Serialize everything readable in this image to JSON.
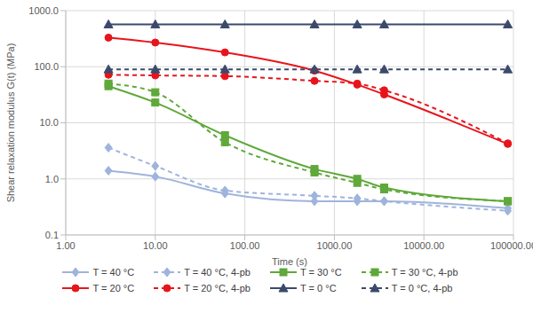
{
  "chart_data": {
    "type": "line",
    "log": true,
    "grid": true,
    "x_label": "Time (s)",
    "y_label": "Shear relaxation modulus G(t) (MPa)",
    "xlim": [
      1,
      100000
    ],
    "xticks": [
      {
        "value": 1,
        "label": "1.00"
      },
      {
        "value": 10,
        "label": "10.00"
      },
      {
        "value": 100,
        "label": "100.00"
      },
      {
        "value": 1000,
        "label": "1000.00"
      },
      {
        "value": 10000,
        "label": "10000.00"
      },
      {
        "value": 100000,
        "label": "100000.00"
      }
    ],
    "ylim": [
      0.1,
      1000
    ],
    "yticks": [
      0.1,
      {
        "value": 1,
        "label": "1.0"
      },
      {
        "value": 10,
        "label": "10.0"
      },
      {
        "value": 100,
        "label": "100.0"
      },
      {
        "value": 1000,
        "label": "1000.0"
      }
    ],
    "x": [
      3,
      10,
      60,
      600,
      1800,
      3600,
      86400
    ],
    "series": [
      {
        "name": "T = 40 °C",
        "color": "#9fb4dc",
        "marker": "diamond",
        "line_style": "solid",
        "values": [
          1.4,
          1.1,
          0.55,
          0.4,
          0.4,
          0.4,
          0.3
        ]
      },
      {
        "name": "T = 40 °C, 4-pb",
        "color": "#9fb4dc",
        "marker": "diamond",
        "line_style": "dashed",
        "values": [
          3.6,
          1.7,
          0.62,
          0.5,
          0.45,
          0.4,
          0.27
        ]
      },
      {
        "name": "T = 30 °C",
        "color": "#5fa83a",
        "marker": "square",
        "line_style": "solid",
        "values": [
          45,
          23,
          6,
          1.5,
          1.0,
          0.7,
          0.4
        ]
      },
      {
        "name": "T = 30 °C, 4-pb",
        "color": "#5fa83a",
        "marker": "square",
        "line_style": "dashed",
        "values": [
          50,
          35,
          4.5,
          1.3,
          0.85,
          0.65,
          0.4
        ]
      },
      {
        "name": "T = 20 °C",
        "color": "#e8141c",
        "marker": "circle",
        "line_style": "solid",
        "values": [
          330,
          270,
          180,
          85,
          48,
          32,
          4.2
        ]
      },
      {
        "name": "T = 20 °C, 4-pb",
        "color": "#e8141c",
        "marker": "circle",
        "line_style": "dashed",
        "values": [
          72,
          70,
          68,
          56,
          50,
          38,
          4.3
        ]
      },
      {
        "name": "T = 0 °C",
        "color": "#3b4a6b",
        "marker": "triangle",
        "line_style": "solid",
        "values": [
          570,
          570,
          570,
          570,
          570,
          570,
          570
        ]
      },
      {
        "name": "T = 0 °C, 4-pb",
        "color": "#3b4a6b",
        "marker": "triangle",
        "line_style": "dashed",
        "values": [
          90,
          90,
          90,
          90,
          90,
          90,
          90
        ]
      }
    ]
  }
}
